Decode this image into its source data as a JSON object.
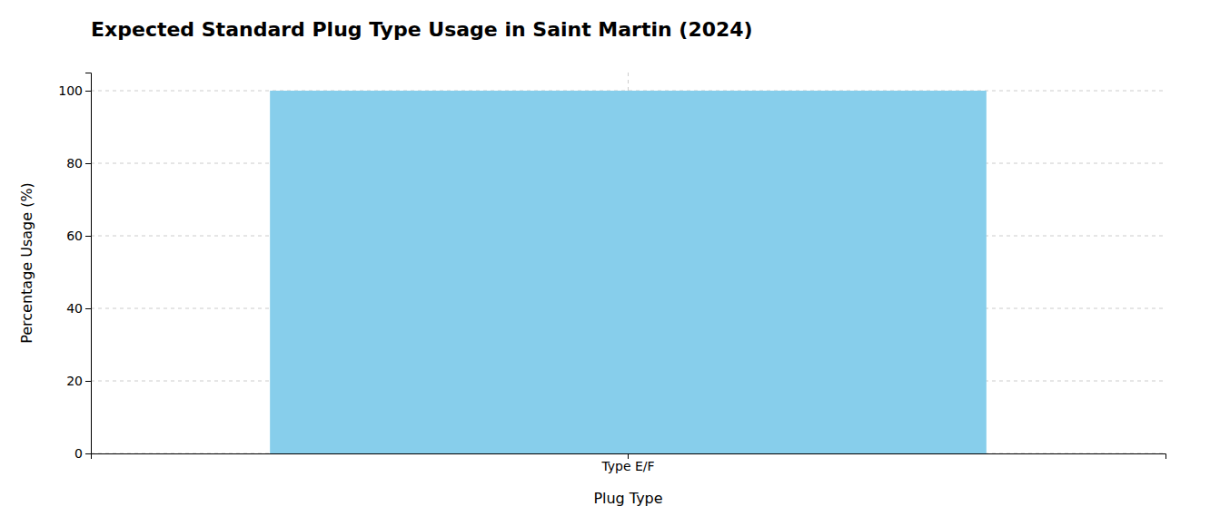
{
  "chart_data": {
    "type": "bar",
    "title": "Expected Standard Plug Type Usage in Saint Martin (2024)",
    "xlabel": "Plug Type",
    "ylabel": "Percentage Usage (%)",
    "categories": [
      "Type E/F"
    ],
    "values": [
      100
    ],
    "color": "#87CEEB",
    "ylim": [
      0,
      105
    ],
    "yticks": [
      0,
      20,
      40,
      60,
      80,
      100
    ],
    "grid": true
  }
}
